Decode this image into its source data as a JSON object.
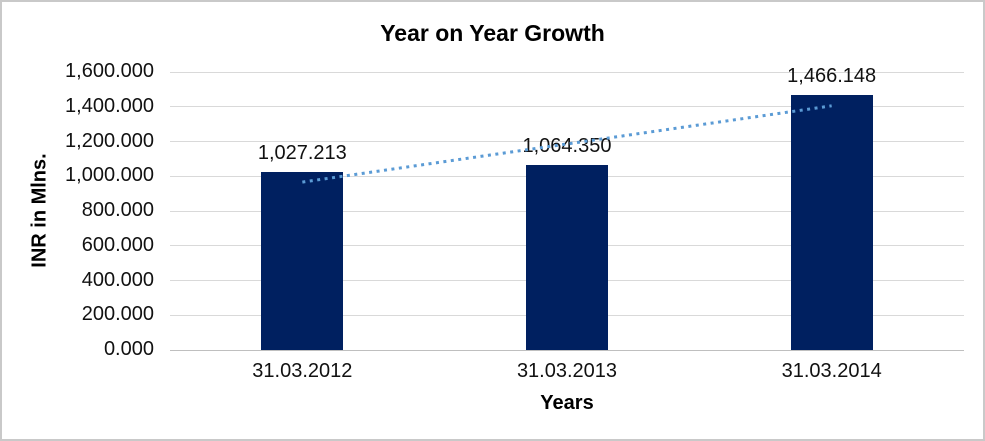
{
  "chart_data": {
    "type": "bar",
    "title": "Year on Year Growth",
    "xlabel": "Years",
    "ylabel": "INR in Mlns.",
    "categories": [
      "31.03.2012",
      "31.03.2013",
      "31.03.2014"
    ],
    "series": [
      {
        "name": "Year on Year Growth",
        "values": [
          1027.213,
          1064.35,
          1466.148
        ]
      }
    ],
    "data_labels": [
      "1,027.213",
      "1,064.350",
      "1,466.148"
    ],
    "ylim": [
      0,
      1600
    ],
    "ytick_step": 200,
    "ytick_labels": [
      "0.000",
      "200.000",
      "400.000",
      "600.000",
      "800.000",
      "1,000.000",
      "1,200.000",
      "1,400.000",
      "1,600.000"
    ],
    "grid": true,
    "legend": "none",
    "trendline": {
      "type": "linear",
      "style": "dotted"
    },
    "colors": {
      "bar": "#002060",
      "trendline": "#5b9bd5",
      "gridline": "#d9d9d9",
      "axis_line": "#bfbfbf",
      "text": "#111111",
      "title_text": "#000000"
    }
  }
}
